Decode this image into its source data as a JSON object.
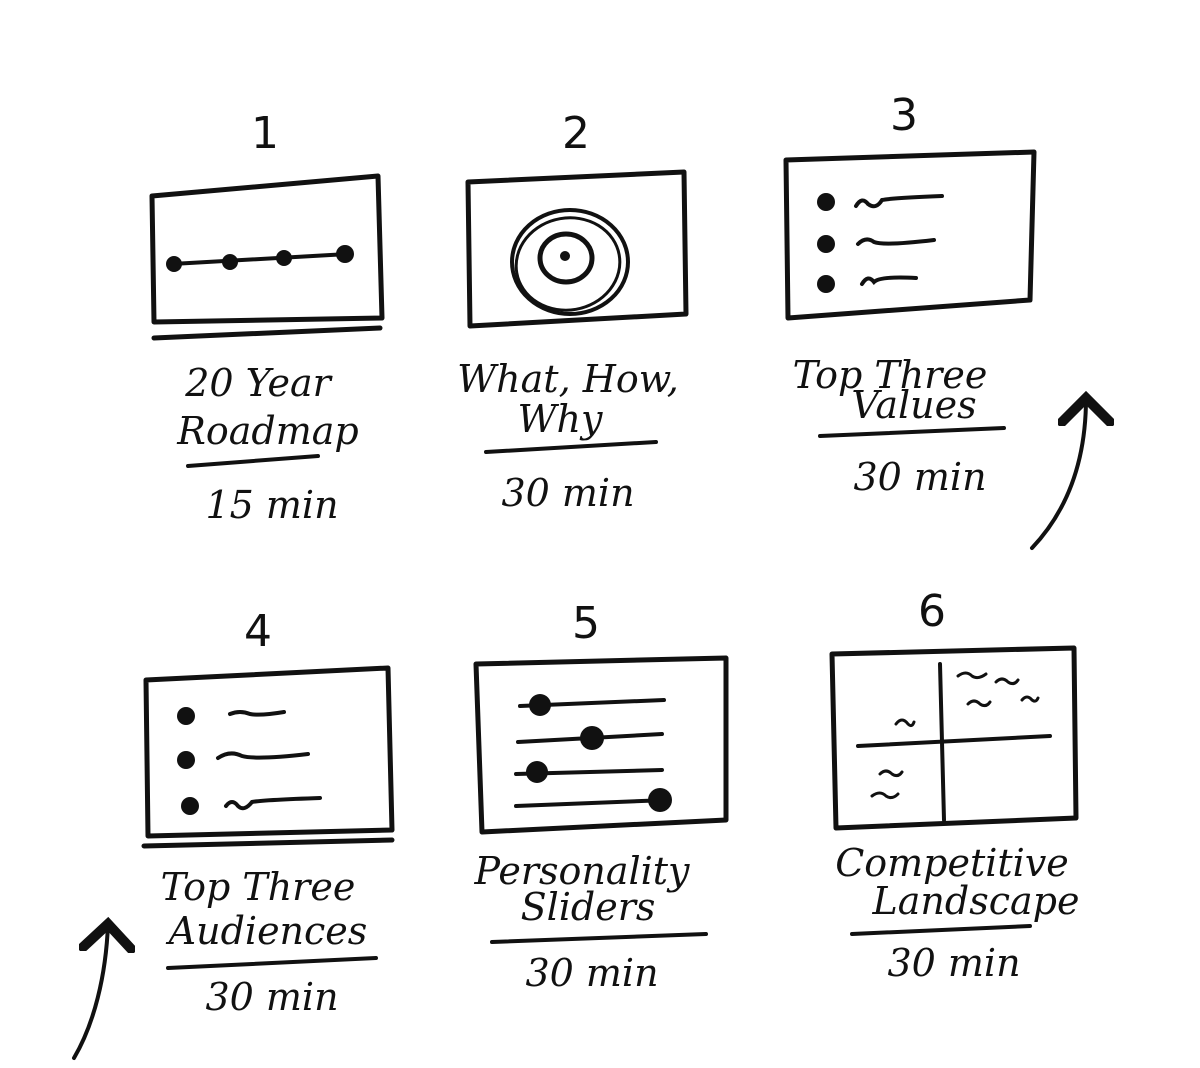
{
  "ink_color": "#111111",
  "background": "#ffffff",
  "steps": [
    {
      "number": "1",
      "title_lines": [
        "20 Year",
        "Roadmap"
      ],
      "duration": "15 min",
      "sketch": "roadmap-timeline"
    },
    {
      "number": "2",
      "title_lines": [
        "What, How,",
        "Why"
      ],
      "duration": "30 min",
      "sketch": "concentric-circles"
    },
    {
      "number": "3",
      "title_lines": [
        "Top Three",
        "Values"
      ],
      "duration": "30 min",
      "sketch": "bullet-list"
    },
    {
      "number": "4",
      "title_lines": [
        "Top Three",
        "Audiences"
      ],
      "duration": "30 min",
      "sketch": "bullet-list"
    },
    {
      "number": "5",
      "title_lines": [
        "Personality",
        "Sliders"
      ],
      "duration": "30 min",
      "sketch": "sliders"
    },
    {
      "number": "6",
      "title_lines": [
        "Competitive",
        "Landscape"
      ],
      "duration": "30 min",
      "sketch": "quadrant-grid"
    }
  ]
}
